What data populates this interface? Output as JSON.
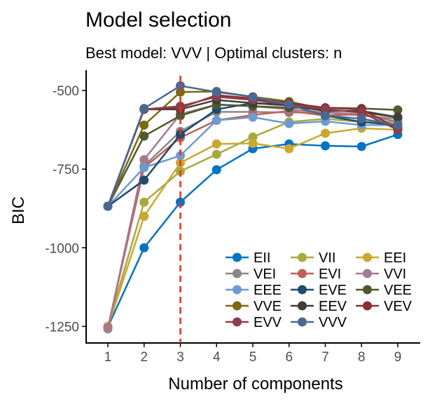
{
  "chart_data": {
    "type": "line",
    "title": "Model selection",
    "subtitle": "Best model: VVV | Optimal clusters: n",
    "xlabel": "Number of components",
    "ylabel": "BIC",
    "x": [
      1,
      2,
      3,
      4,
      5,
      6,
      7,
      8,
      9
    ],
    "xticks": [
      "1",
      "2",
      "3",
      "4",
      "5",
      "6",
      "7",
      "8",
      "9"
    ],
    "yticks": [
      -500,
      -750,
      -1000,
      -1250
    ],
    "ytick_labels": [
      "-500",
      "-750",
      "-1000",
      "-1250"
    ],
    "ylim": [
      -1285,
      -445
    ],
    "xlim": [
      0.6,
      9.4
    ],
    "grid": false,
    "legend_position": "bottom-right",
    "vline": {
      "x": 3,
      "color": "#E8321E",
      "style": "dashed"
    },
    "series": [
      {
        "name": "EII",
        "color": "#0073C2",
        "values": [
          -1252,
          -1000,
          -855,
          -752,
          -685,
          -670,
          -676,
          -678,
          -640
        ]
      },
      {
        "name": "VII",
        "color": "#A8A83F",
        "values": [
          -1250,
          -855,
          -757,
          -703,
          -648,
          -600,
          -590,
          -600,
          -600
        ]
      },
      {
        "name": "EEI",
        "color": "#C9A832",
        "values": [
          -1252,
          -900,
          -730,
          -670,
          -668,
          -685,
          -636,
          -620,
          -625
        ]
      },
      {
        "name": "VEI",
        "color": "#8A8785",
        "values": [
          -1255,
          -740,
          -630,
          -568,
          -568,
          -570,
          -570,
          -580,
          -590
        ]
      },
      {
        "name": "EVI",
        "color": "#C0605A",
        "values": [
          -1255,
          -745,
          -650,
          -595,
          -578,
          -565,
          -580,
          -575,
          -600
        ]
      },
      {
        "name": "VVI",
        "color": "#A67A8E",
        "values": [
          -1258,
          -720,
          -575,
          -545,
          -550,
          -560,
          -570,
          -575,
          -600
        ]
      },
      {
        "name": "EEE",
        "color": "#6E9AD0",
        "values": [
          -868,
          -745,
          -707,
          -595,
          -585,
          -605,
          -598,
          -610,
          -610
        ]
      },
      {
        "name": "EVE",
        "color": "#1F4B6E",
        "values": [
          -868,
          -785,
          -640,
          -560,
          -540,
          -545,
          -580,
          -600,
          -610
        ]
      },
      {
        "name": "VEE",
        "color": "#4C5A2E",
        "values": [
          -868,
          -645,
          -580,
          -545,
          -550,
          -555,
          -555,
          -557,
          -562
        ]
      },
      {
        "name": "VVE",
        "color": "#7A6A12",
        "values": [
          -868,
          -610,
          -505,
          -503,
          -520,
          -535,
          -560,
          -570,
          -585
        ]
      },
      {
        "name": "EEV",
        "color": "#3D3D3A",
        "values": [
          -868,
          -560,
          -560,
          -530,
          -540,
          -548,
          -565,
          -565,
          -585
        ]
      },
      {
        "name": "VEV",
        "color": "#8A3030",
        "values": [
          -868,
          -560,
          -555,
          -515,
          -525,
          -540,
          -555,
          -560,
          -620
        ]
      },
      {
        "name": "EVV",
        "color": "#8C3E4C",
        "values": [
          -868,
          -560,
          -550,
          -520,
          -530,
          -545,
          -560,
          -570,
          -625
        ]
      },
      {
        "name": "VVV",
        "color": "#4A6990",
        "values": [
          -868,
          -557,
          -485,
          -505,
          -520,
          -545,
          -580,
          -590,
          -610
        ]
      }
    ]
  }
}
